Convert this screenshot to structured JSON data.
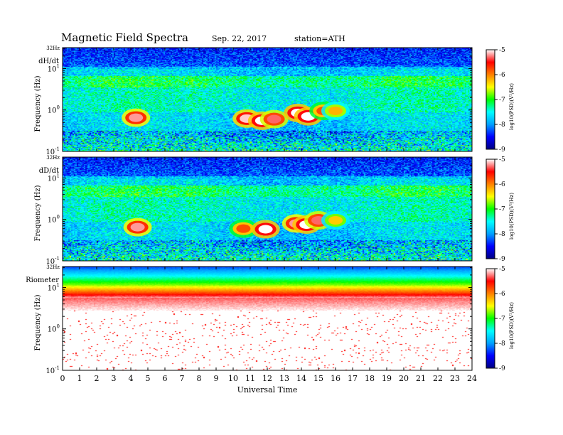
{
  "title": "Magnetic Field Spectra",
  "date": "Sep. 22, 2017",
  "station": "station=ATH",
  "colors": {
    "colormap": [
      "#000080",
      "#0000ff",
      "#00a0ff",
      "#00ffff",
      "#00ff00",
      "#ffff00",
      "#ff8000",
      "#ff0000",
      "#ffffff"
    ]
  },
  "chart_data": [
    {
      "type": "heatmap",
      "panel_label": "dH/dt",
      "ylabel": "Frequency (Hz)",
      "y_scale": "log",
      "y_top_label": "32Hz",
      "y_ticks": [
        {
          "value": 0.1,
          "base": "10",
          "exp": "-1"
        },
        {
          "value": 1,
          "base": "10",
          "exp": "0"
        },
        {
          "value": 10,
          "base": "10",
          "exp": "1"
        }
      ],
      "xlim": [
        0,
        24
      ],
      "ylim": [
        0.1,
        32
      ],
      "colorbar": {
        "label": "log10(PSD)(V²/Hz)",
        "ticks": [
          "-5",
          "-6",
          "-7",
          "-8",
          "-9"
        ],
        "range": [
          -9,
          -5
        ]
      },
      "features": [
        {
          "t": 4.3,
          "f": 0.65,
          "level": -5.2
        },
        {
          "t": 10.8,
          "f": 0.62,
          "level": -5.1
        },
        {
          "t": 11.7,
          "f": 0.55,
          "level": -5.0
        },
        {
          "t": 12.4,
          "f": 0.6,
          "level": -5.3
        },
        {
          "t": 13.8,
          "f": 0.85,
          "level": -5.0
        },
        {
          "t": 14.4,
          "f": 0.7,
          "level": -5.0
        },
        {
          "t": 15.3,
          "f": 0.95,
          "level": -5.8
        },
        {
          "t": 16.0,
          "f": 0.95,
          "level": -6.2
        }
      ]
    },
    {
      "type": "heatmap",
      "panel_label": "dD/dt",
      "ylabel": "Frequency (Hz)",
      "y_scale": "log",
      "y_top_label": "32Hz",
      "y_ticks": [
        {
          "value": 0.1,
          "base": "10",
          "exp": "-1"
        },
        {
          "value": 1,
          "base": "10",
          "exp": "0"
        },
        {
          "value": 10,
          "base": "10",
          "exp": "1"
        }
      ],
      "xlim": [
        0,
        24
      ],
      "ylim": [
        0.1,
        32
      ],
      "colorbar": {
        "label": "log10(PSD)(V²/Hz)",
        "ticks": [
          "-5",
          "-6",
          "-7",
          "-8",
          "-9"
        ],
        "range": [
          -9,
          -5
        ]
      },
      "features": [
        {
          "t": 4.4,
          "f": 0.65,
          "level": -5.2
        },
        {
          "t": 10.6,
          "f": 0.6,
          "level": -5.8
        },
        {
          "t": 11.9,
          "f": 0.58,
          "level": -5.0
        },
        {
          "t": 13.7,
          "f": 0.8,
          "level": -5.2
        },
        {
          "t": 14.3,
          "f": 0.75,
          "level": -5.0
        },
        {
          "t": 15.0,
          "f": 0.95,
          "level": -5.3
        },
        {
          "t": 16.0,
          "f": 0.95,
          "level": -6.3
        }
      ]
    },
    {
      "type": "heatmap",
      "panel_label": "Riometer",
      "ylabel": "Frequency (Hz)",
      "y_scale": "log",
      "y_top_label": "32Hz",
      "y_ticks": [
        {
          "value": 0.1,
          "base": "10",
          "exp": "-1"
        },
        {
          "value": 1,
          "base": "10",
          "exp": "0"
        },
        {
          "value": 10,
          "base": "10",
          "exp": "1"
        }
      ],
      "xlim": [
        0,
        24
      ],
      "ylim": [
        0.1,
        32
      ],
      "colorbar": {
        "label": "log10(PSD)(V²/Hz)",
        "ticks": [
          "-5",
          "-6",
          "-7",
          "-8",
          "-9"
        ],
        "range": [
          -9,
          -5
        ]
      }
    }
  ],
  "xaxis": {
    "label": "Universal Time",
    "ticks": [
      "0",
      "1",
      "2",
      "3",
      "4",
      "5",
      "6",
      "7",
      "8",
      "9",
      "10",
      "11",
      "12",
      "13",
      "14",
      "15",
      "16",
      "17",
      "18",
      "19",
      "20",
      "21",
      "22",
      "23",
      "24"
    ]
  }
}
